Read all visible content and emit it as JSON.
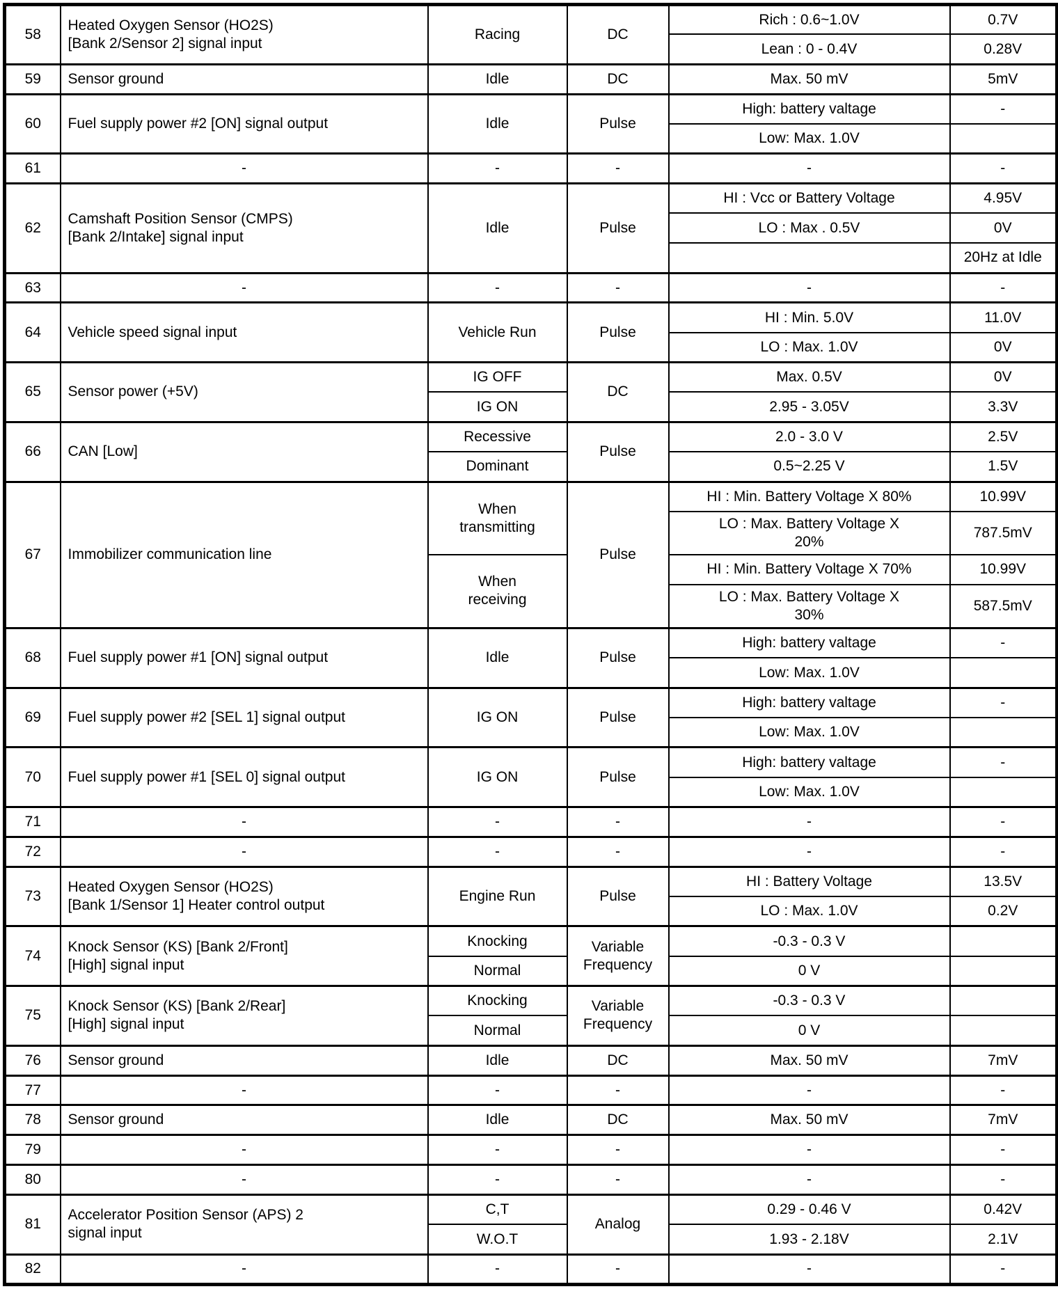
{
  "page": {
    "background_color": "#ffffff",
    "line_color": "#000000"
  },
  "table": {
    "column_keys": [
      "pin",
      "description",
      "condition",
      "type",
      "level",
      "value"
    ],
    "groups": [
      {
        "pin": "58",
        "description": "Heated Oxygen Sensor (HO2S)\n[Bank 2/Sensor 2] signal input",
        "condition": [
          {
            "text": "Racing",
            "span": 2
          }
        ],
        "type": [
          {
            "text": "DC",
            "span": 2
          }
        ],
        "rows": [
          {
            "level": "Rich : 0.6~1.0V",
            "value": "0.7V"
          },
          {
            "level": "Lean : 0 - 0.4V",
            "value": "0.28V"
          }
        ]
      },
      {
        "pin": "59",
        "description": "Sensor ground",
        "condition": [
          {
            "text": "Idle",
            "span": 1
          }
        ],
        "type": [
          {
            "text": "DC",
            "span": 1
          }
        ],
        "rows": [
          {
            "level": "Max. 50 mV",
            "value": "5mV"
          }
        ]
      },
      {
        "pin": "60",
        "description": "Fuel supply power #2 [ON] signal output",
        "condition": [
          {
            "text": "Idle",
            "span": 2
          }
        ],
        "type": [
          {
            "text": "Pulse",
            "span": 2
          }
        ],
        "rows": [
          {
            "level": "High: battery valtage",
            "value": "-"
          },
          {
            "level": "Low: Max. 1.0V",
            "value": ""
          }
        ]
      },
      {
        "pin": "61",
        "description": "-",
        "condition": [
          {
            "text": "-",
            "span": 1
          }
        ],
        "type": [
          {
            "text": "-",
            "span": 1
          }
        ],
        "rows": [
          {
            "level": "-",
            "value": "-"
          }
        ]
      },
      {
        "pin": "62",
        "description": "Camshaft Position Sensor (CMPS)\n[Bank 2/Intake] signal input",
        "condition": [
          {
            "text": "Idle",
            "span": 3
          }
        ],
        "type": [
          {
            "text": "Pulse",
            "span": 3
          }
        ],
        "rows": [
          {
            "level": "HI : Vcc or Battery Voltage",
            "value": "4.95V"
          },
          {
            "level": "LO : Max . 0.5V",
            "value": "0V"
          },
          {
            "level": "",
            "value": "20Hz at Idle"
          }
        ]
      },
      {
        "pin": "63",
        "description": "-",
        "condition": [
          {
            "text": "-",
            "span": 1
          }
        ],
        "type": [
          {
            "text": "-",
            "span": 1
          }
        ],
        "rows": [
          {
            "level": "-",
            "value": "-"
          }
        ]
      },
      {
        "pin": "64",
        "description": "Vehicle speed signal input",
        "condition": [
          {
            "text": "Vehicle Run",
            "span": 2
          }
        ],
        "type": [
          {
            "text": "Pulse",
            "span": 2
          }
        ],
        "rows": [
          {
            "level": "HI : Min. 5.0V",
            "value": "11.0V"
          },
          {
            "level": "LO : Max. 1.0V",
            "value": "0V"
          }
        ]
      },
      {
        "pin": "65",
        "description": "Sensor power (+5V)",
        "condition": [
          {
            "text": "IG OFF",
            "span": 1
          },
          {
            "text": "IG ON",
            "span": 1
          }
        ],
        "type": [
          {
            "text": "DC",
            "span": 2
          }
        ],
        "rows": [
          {
            "level": "Max. 0.5V",
            "value": "0V"
          },
          {
            "level": "2.95 - 3.05V",
            "value": "3.3V"
          }
        ]
      },
      {
        "pin": "66",
        "description": "CAN [Low]",
        "condition": [
          {
            "text": "Recessive",
            "span": 1
          },
          {
            "text": "Dominant",
            "span": 1
          }
        ],
        "type": [
          {
            "text": "Pulse",
            "span": 2
          }
        ],
        "rows": [
          {
            "level": "2.0 - 3.0 V",
            "value": "2.5V"
          },
          {
            "level": "0.5~2.25 V",
            "value": "1.5V"
          }
        ]
      },
      {
        "pin": "67",
        "description": "Immobilizer communication line",
        "condition": [
          {
            "text": "When\ntransmitting",
            "span": 2
          },
          {
            "text": "When\nreceiving",
            "span": 2
          }
        ],
        "type": [
          {
            "text": "Pulse",
            "span": 4
          }
        ],
        "rows": [
          {
            "level": "HI : Min. Battery Voltage X 80%",
            "value": "10.99V"
          },
          {
            "level": "LO : Max. Battery Voltage X\n20%",
            "value": "787.5mV"
          },
          {
            "level": "HI : Min. Battery Voltage X 70%",
            "value": "10.99V"
          },
          {
            "level": "LO : Max. Battery Voltage X\n30%",
            "value": "587.5mV"
          }
        ]
      },
      {
        "pin": "68",
        "description": "Fuel supply power #1 [ON] signal output",
        "condition": [
          {
            "text": "Idle",
            "span": 2
          }
        ],
        "type": [
          {
            "text": "Pulse",
            "span": 2
          }
        ],
        "rows": [
          {
            "level": "High: battery valtage",
            "value": "-"
          },
          {
            "level": "Low: Max. 1.0V",
            "value": ""
          }
        ]
      },
      {
        "pin": "69",
        "description": "Fuel supply power #2 [SEL 1] signal output",
        "condition": [
          {
            "text": "IG ON",
            "span": 2
          }
        ],
        "type": [
          {
            "text": "Pulse",
            "span": 2
          }
        ],
        "rows": [
          {
            "level": "High: battery valtage",
            "value": "-"
          },
          {
            "level": "Low: Max. 1.0V",
            "value": ""
          }
        ]
      },
      {
        "pin": "70",
        "description": "Fuel supply power #1 [SEL 0] signal output",
        "condition": [
          {
            "text": "IG ON",
            "span": 2
          }
        ],
        "type": [
          {
            "text": "Pulse",
            "span": 2
          }
        ],
        "rows": [
          {
            "level": "High: battery valtage",
            "value": "-"
          },
          {
            "level": "Low: Max. 1.0V",
            "value": ""
          }
        ]
      },
      {
        "pin": "71",
        "description": "-",
        "condition": [
          {
            "text": "-",
            "span": 1
          }
        ],
        "type": [
          {
            "text": "-",
            "span": 1
          }
        ],
        "rows": [
          {
            "level": "-",
            "value": "-"
          }
        ]
      },
      {
        "pin": "72",
        "description": "-",
        "condition": [
          {
            "text": "-",
            "span": 1
          }
        ],
        "type": [
          {
            "text": "-",
            "span": 1
          }
        ],
        "rows": [
          {
            "level": "-",
            "value": "-"
          }
        ]
      },
      {
        "pin": "73",
        "description": "Heated Oxygen Sensor (HO2S)\n[Bank 1/Sensor 1] Heater control output",
        "condition": [
          {
            "text": "Engine Run",
            "span": 2
          }
        ],
        "type": [
          {
            "text": "Pulse",
            "span": 2
          }
        ],
        "rows": [
          {
            "level": "HI : Battery Voltage",
            "value": "13.5V"
          },
          {
            "level": "LO : Max. 1.0V",
            "value": "0.2V"
          }
        ]
      },
      {
        "pin": "74",
        "description": "Knock Sensor (KS) [Bank 2/Front]\n[High] signal input",
        "condition": [
          {
            "text": "Knocking",
            "span": 1
          },
          {
            "text": "Normal",
            "span": 1
          }
        ],
        "type": [
          {
            "text": "Variable\nFrequency",
            "span": 2
          }
        ],
        "rows": [
          {
            "level": "-0.3 - 0.3 V",
            "value": ""
          },
          {
            "level": "0 V",
            "value": ""
          }
        ]
      },
      {
        "pin": "75",
        "description": "Knock Sensor (KS) [Bank 2/Rear]\n[High] signal input",
        "condition": [
          {
            "text": "Knocking",
            "span": 1
          },
          {
            "text": "Normal",
            "span": 1
          }
        ],
        "type": [
          {
            "text": "Variable\nFrequency",
            "span": 2
          }
        ],
        "rows": [
          {
            "level": "-0.3 - 0.3 V",
            "value": ""
          },
          {
            "level": "0 V",
            "value": ""
          }
        ]
      },
      {
        "pin": "76",
        "description": "Sensor ground",
        "condition": [
          {
            "text": "Idle",
            "span": 1
          }
        ],
        "type": [
          {
            "text": "DC",
            "span": 1
          }
        ],
        "rows": [
          {
            "level": "Max. 50 mV",
            "value": "7mV"
          }
        ]
      },
      {
        "pin": "77",
        "description": "-",
        "condition": [
          {
            "text": "-",
            "span": 1
          }
        ],
        "type": [
          {
            "text": "-",
            "span": 1
          }
        ],
        "rows": [
          {
            "level": "-",
            "value": "-"
          }
        ]
      },
      {
        "pin": "78",
        "description": "Sensor ground",
        "condition": [
          {
            "text": "Idle",
            "span": 1
          }
        ],
        "type": [
          {
            "text": "DC",
            "span": 1
          }
        ],
        "rows": [
          {
            "level": "Max. 50 mV",
            "value": "7mV"
          }
        ]
      },
      {
        "pin": "79",
        "description": "-",
        "condition": [
          {
            "text": "-",
            "span": 1
          }
        ],
        "type": [
          {
            "text": "-",
            "span": 1
          }
        ],
        "rows": [
          {
            "level": "-",
            "value": "-"
          }
        ]
      },
      {
        "pin": "80",
        "description": "-",
        "condition": [
          {
            "text": "-",
            "span": 1
          }
        ],
        "type": [
          {
            "text": "-",
            "span": 1
          }
        ],
        "rows": [
          {
            "level": "-",
            "value": "-"
          }
        ]
      },
      {
        "pin": "81",
        "description": "Accelerator Position Sensor (APS) 2\nsignal input",
        "condition": [
          {
            "text": "C,T",
            "span": 1
          },
          {
            "text": "W.O.T",
            "span": 1
          }
        ],
        "type": [
          {
            "text": "Analog",
            "span": 2
          }
        ],
        "rows": [
          {
            "level": "0.29 - 0.46 V",
            "value": "0.42V"
          },
          {
            "level": "1.93 - 2.18V",
            "value": "2.1V"
          }
        ]
      },
      {
        "pin": "82",
        "description": "-",
        "condition": [
          {
            "text": "-",
            "span": 1
          }
        ],
        "type": [
          {
            "text": "-",
            "span": 1
          }
        ],
        "rows": [
          {
            "level": "-",
            "value": "-"
          }
        ]
      }
    ]
  }
}
